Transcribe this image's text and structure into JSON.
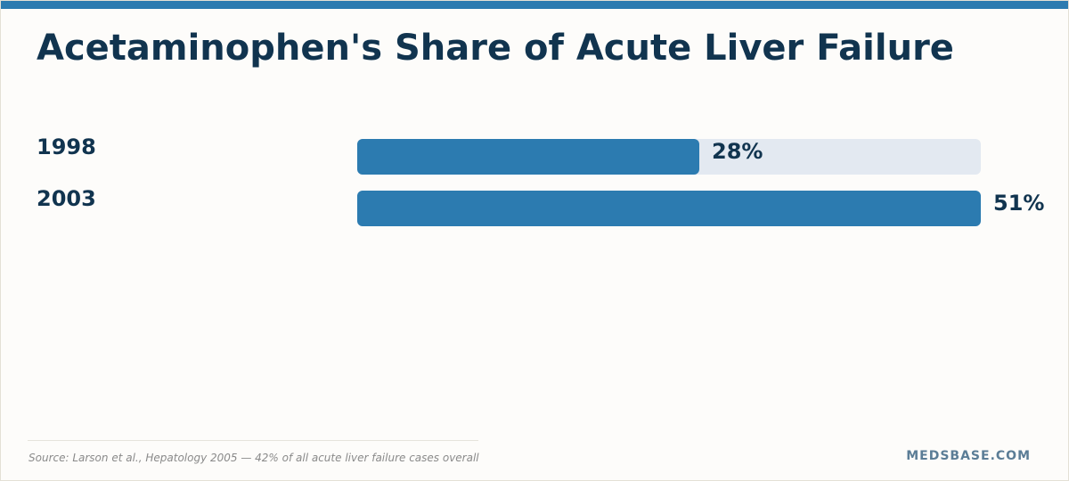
{
  "title": "Acetaminophen's Share of Acute Liver Failure",
  "chart_data": {
    "type": "bar",
    "orientation": "horizontal",
    "categories": [
      "1998",
      "2003"
    ],
    "values": [
      28,
      51
    ],
    "value_labels": [
      "28%",
      "51%"
    ],
    "unit": "%",
    "title": "Acetaminophen's Share of Acute Liver Failure",
    "xlabel": "",
    "ylabel": "",
    "xlim": [
      0,
      51
    ],
    "grid": false,
    "legend": "none"
  },
  "footer": {
    "source": "Source: Larson et al., Hepatology 2005 — 42% of all acute liver failure cases overall",
    "brand": "MEDSBASE.COM"
  },
  "colors": {
    "accent": "#2c7bb0",
    "track": "#e3e9f1",
    "text": "#11344f",
    "brand": "#5b7d96"
  }
}
